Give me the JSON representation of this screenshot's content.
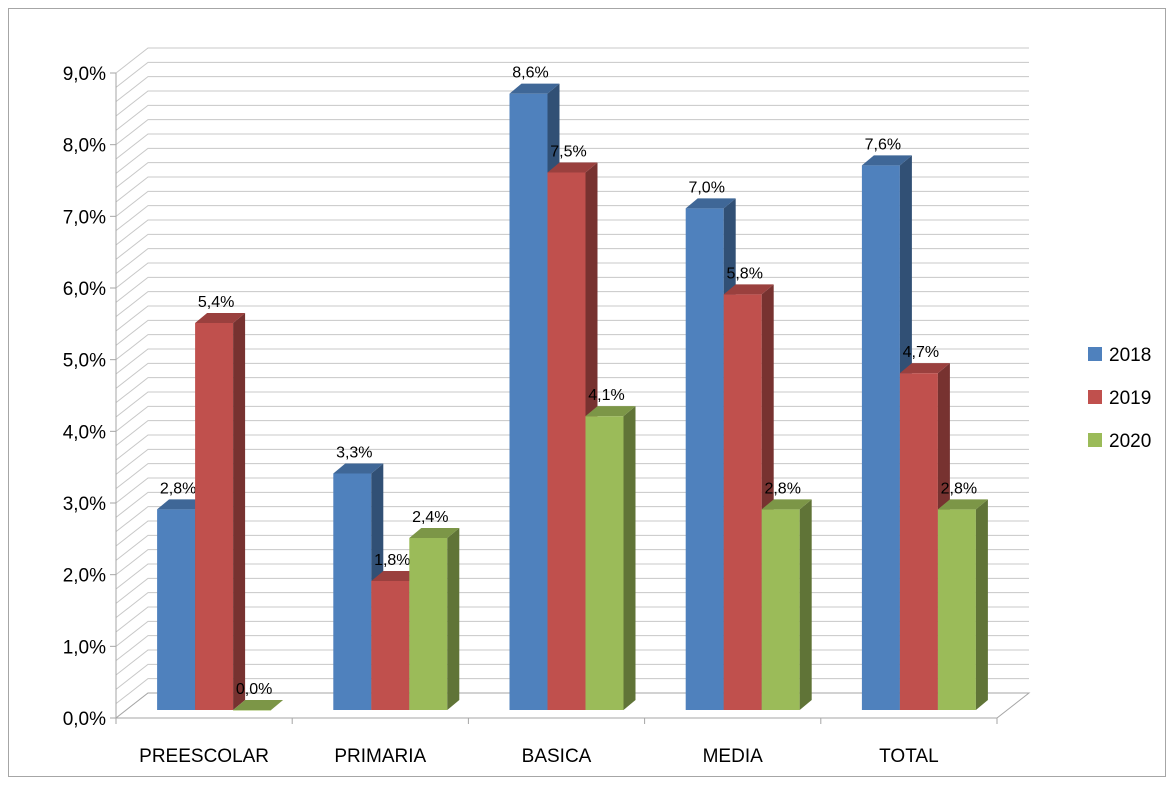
{
  "chart_data": {
    "type": "bar",
    "categories": [
      "PREESCOLAR",
      "PRIMARIA",
      "BASICA",
      "MEDIA",
      "TOTAL"
    ],
    "series": [
      {
        "name": "2018",
        "values": [
          2.8,
          3.3,
          8.6,
          7.0,
          7.6
        ],
        "labels": [
          "2,8%",
          "3,3%",
          "8,6%",
          "7,0%",
          "7,6%"
        ],
        "color": "#4f81bd"
      },
      {
        "name": "2019",
        "values": [
          5.4,
          1.8,
          7.5,
          5.8,
          4.7
        ],
        "labels": [
          "5,4%",
          "1,8%",
          "7,5%",
          "5,8%",
          "4,7%"
        ],
        "color": "#c0504d"
      },
      {
        "name": "2020",
        "values": [
          0.0,
          2.4,
          4.1,
          2.8,
          2.8
        ],
        "labels": [
          "0,0%",
          "2,4%",
          "4,1%",
          "2,8%",
          "2,8%"
        ],
        "color": "#9bbb59"
      }
    ],
    "ylim": [
      0,
      9
    ],
    "y_ticks": [
      0,
      1,
      2,
      3,
      4,
      5,
      6,
      7,
      8,
      9
    ],
    "y_tick_labels": [
      "0,0%",
      "1,0%",
      "2,0%",
      "3,0%",
      "4,0%",
      "5,0%",
      "6,0%",
      "7,0%",
      "8,0%",
      "9,0%"
    ],
    "y_minor_step": 0.2,
    "grid": true,
    "legend_position": "right",
    "title": "",
    "xlabel": "",
    "ylabel": ""
  }
}
